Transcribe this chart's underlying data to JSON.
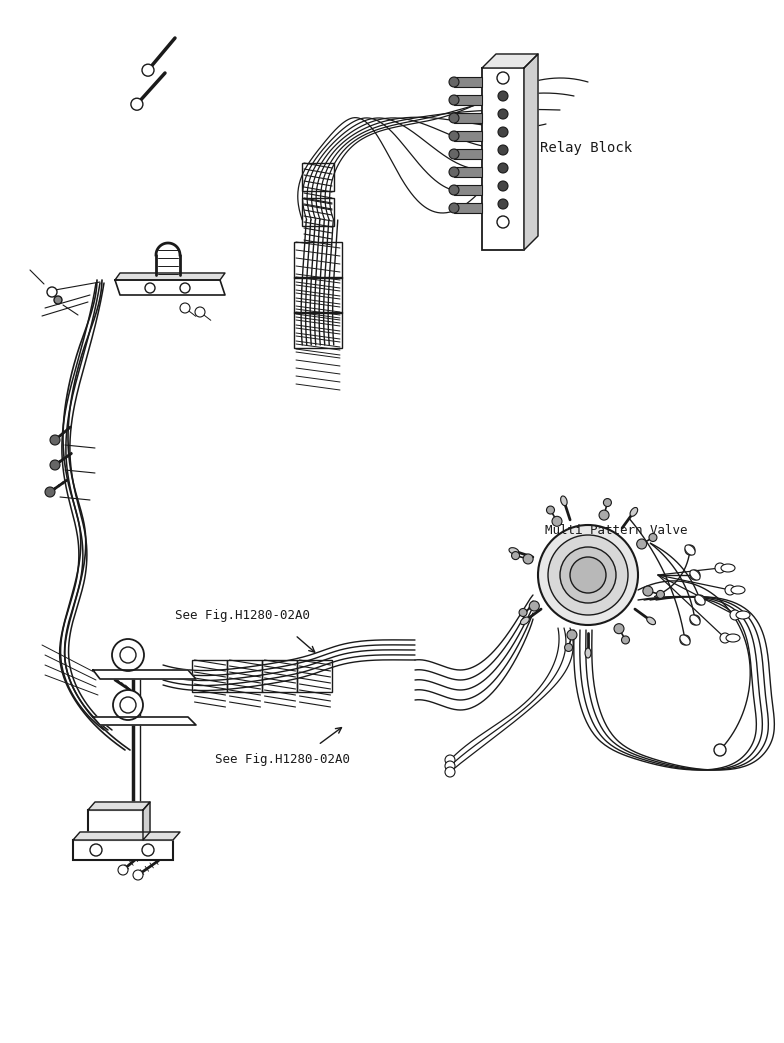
{
  "bg_color": "#ffffff",
  "lc": "#1a1a1a",
  "figsize": [
    7.84,
    10.43
  ],
  "dpi": 100,
  "labels": {
    "relay_block": "Relay Block",
    "multi_pattern_valve": "Multi Pattern Valve",
    "see_fig_upper": "See Fig.H1280-02A0",
    "see_fig_lower": "See Fig.H1280-02A0"
  }
}
